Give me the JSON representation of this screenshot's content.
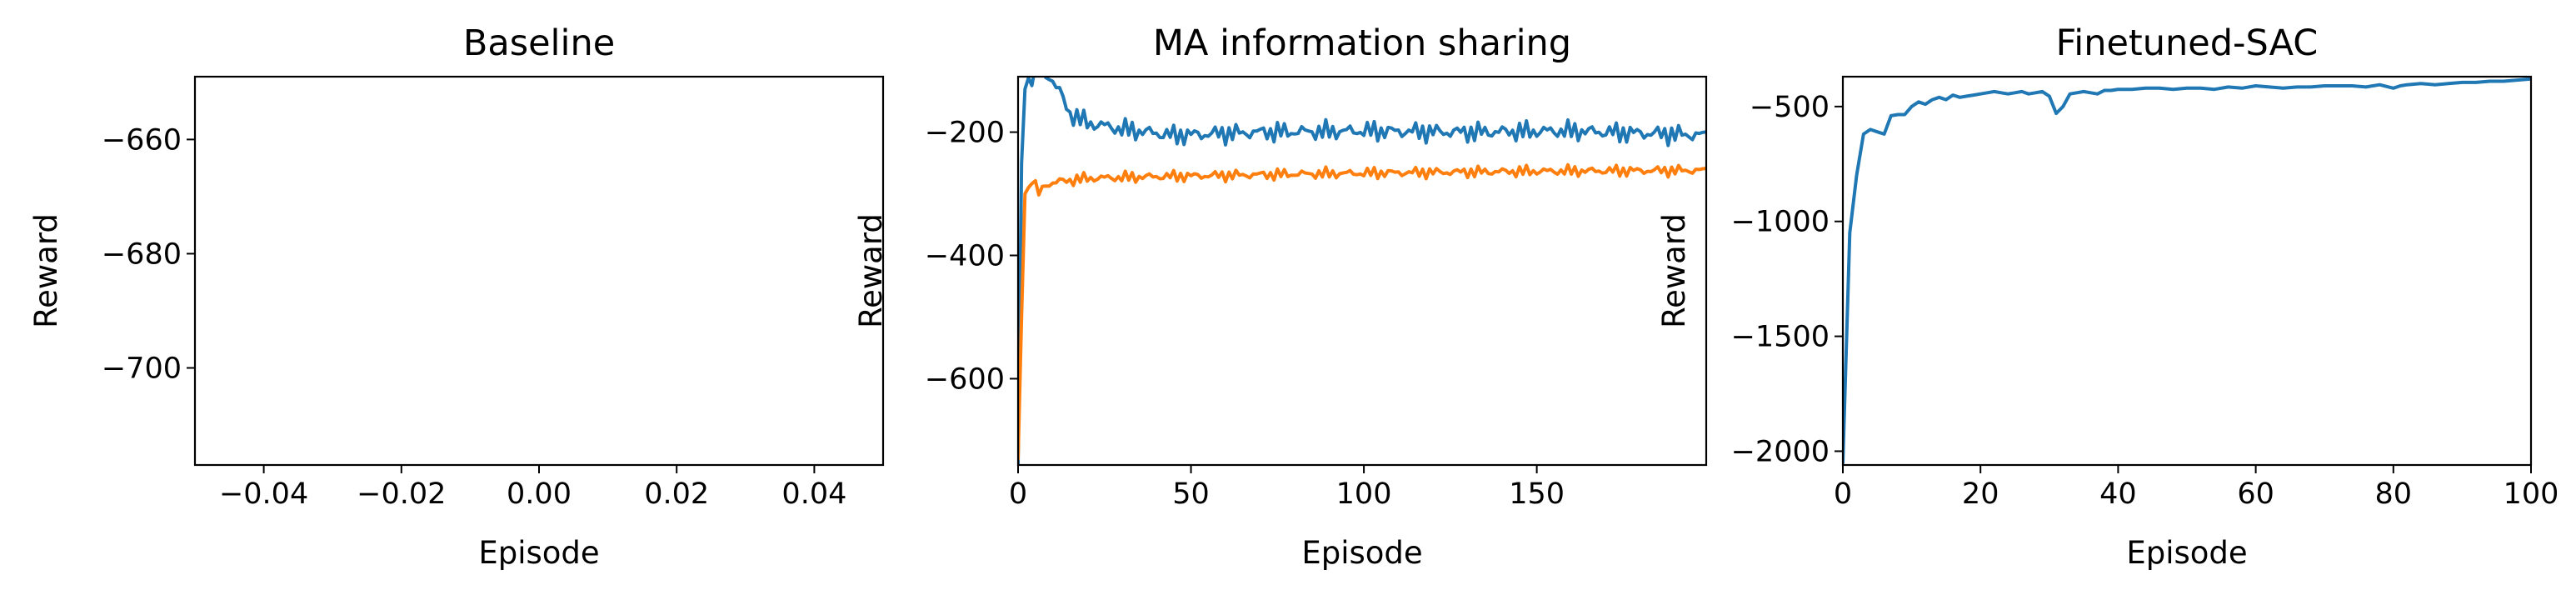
{
  "chart_data": [
    {
      "type": "line",
      "title": "Baseline",
      "xlabel": "Episode",
      "ylabel": "Reward",
      "xlim": [
        -0.05,
        0.05
      ],
      "ylim": [
        -717,
        -649
      ],
      "xticks": [
        -0.04,
        -0.02,
        0.0,
        0.02,
        0.04
      ],
      "xtick_labels": [
        "−0.04",
        "−0.02",
        "0.00",
        "0.02",
        "0.04"
      ],
      "yticks": [
        -660,
        -680,
        -700
      ],
      "ytick_labels": [
        "−660",
        "−680",
        "−700"
      ],
      "series": []
    },
    {
      "type": "line",
      "title": "MA information sharing",
      "xlabel": "Episode",
      "ylabel": "Reward",
      "xlim": [
        0,
        199
      ],
      "ylim": [
        -740,
        -110
      ],
      "xticks": [
        0,
        50,
        100,
        150
      ],
      "xtick_labels": [
        "0",
        "50",
        "100",
        "150"
      ],
      "yticks": [
        -200,
        -400,
        -600
      ],
      "ytick_labels": [
        "−200",
        "−400",
        "−600"
      ],
      "series": [
        {
          "color": "#1f77b4",
          "generator": "noisy",
          "start": -740,
          "ramp": [
            [
              1,
              -250
            ],
            [
              2,
              -130
            ],
            [
              3,
              -112
            ],
            [
              6,
              -105
            ],
            [
              9,
              -108
            ],
            [
              12,
              -135
            ],
            [
              15,
              -170
            ],
            [
              20,
              -185
            ],
            [
              30,
              -195
            ],
            [
              45,
              -205
            ],
            [
              70,
              -200
            ],
            [
              100,
              -198
            ],
            [
              130,
              -200
            ],
            [
              160,
              -198
            ],
            [
              199,
              -205
            ]
          ],
          "amp": 14
        },
        {
          "color": "#ff7f0e",
          "generator": "noisy",
          "start": -730,
          "ramp": [
            [
              1,
              -500
            ],
            [
              2,
              -300
            ],
            [
              3,
              -290
            ],
            [
              4,
              -275
            ],
            [
              6,
              -300
            ],
            [
              8,
              -285
            ],
            [
              12,
              -280
            ],
            [
              20,
              -275
            ],
            [
              40,
              -272
            ],
            [
              80,
              -268
            ],
            [
              120,
              -265
            ],
            [
              160,
              -263
            ],
            [
              199,
              -262
            ]
          ],
          "amp": 8
        }
      ]
    },
    {
      "type": "line",
      "title": "Finetuned-SAC",
      "xlabel": "Episode",
      "ylabel": "Reward",
      "xlim": [
        0,
        100
      ],
      "ylim": [
        -2060,
        -370
      ],
      "xticks": [
        0,
        20,
        40,
        60,
        80,
        100
      ],
      "xtick_labels": [
        "0",
        "20",
        "40",
        "60",
        "80",
        "100"
      ],
      "yticks": [
        -500,
        -1000,
        -1500,
        -2000
      ],
      "ytick_labels": [
        "−500",
        "−1000",
        "−1500",
        "−2000"
      ],
      "series": [
        {
          "color": "#1f77b4",
          "generator": "points",
          "points": [
            [
              0,
              -2050
            ],
            [
              1,
              -1050
            ],
            [
              2,
              -800
            ],
            [
              3,
              -620
            ],
            [
              4,
              -600
            ],
            [
              5,
              -610
            ],
            [
              6,
              -620
            ],
            [
              7,
              -540
            ],
            [
              8,
              -535
            ],
            [
              9,
              -535
            ],
            [
              10,
              -500
            ],
            [
              11,
              -480
            ],
            [
              12,
              -490
            ],
            [
              13,
              -470
            ],
            [
              14,
              -460
            ],
            [
              15,
              -470
            ],
            [
              16,
              -450
            ],
            [
              17,
              -460
            ],
            [
              18,
              -455
            ],
            [
              19,
              -450
            ],
            [
              20,
              -445
            ],
            [
              21,
              -440
            ],
            [
              22,
              -435
            ],
            [
              23,
              -440
            ],
            [
              24,
              -445
            ],
            [
              25,
              -440
            ],
            [
              26,
              -435
            ],
            [
              27,
              -445
            ],
            [
              28,
              -440
            ],
            [
              29,
              -435
            ],
            [
              30,
              -455
            ],
            [
              31,
              -530
            ],
            [
              32,
              -500
            ],
            [
              33,
              -445
            ],
            [
              34,
              -440
            ],
            [
              35,
              -435
            ],
            [
              36,
              -440
            ],
            [
              37,
              -445
            ],
            [
              38,
              -430
            ],
            [
              39,
              -430
            ],
            [
              40,
              -425
            ],
            [
              42,
              -425
            ],
            [
              44,
              -420
            ],
            [
              46,
              -420
            ],
            [
              48,
              -425
            ],
            [
              50,
              -420
            ],
            [
              52,
              -420
            ],
            [
              54,
              -425
            ],
            [
              56,
              -415
            ],
            [
              58,
              -420
            ],
            [
              60,
              -410
            ],
            [
              62,
              -415
            ],
            [
              64,
              -420
            ],
            [
              66,
              -415
            ],
            [
              68,
              -415
            ],
            [
              70,
              -410
            ],
            [
              72,
              -410
            ],
            [
              74,
              -410
            ],
            [
              76,
              -415
            ],
            [
              78,
              -405
            ],
            [
              80,
              -420
            ],
            [
              81,
              -410
            ],
            [
              82,
              -405
            ],
            [
              84,
              -400
            ],
            [
              86,
              -405
            ],
            [
              88,
              -400
            ],
            [
              90,
              -395
            ],
            [
              92,
              -395
            ],
            [
              94,
              -390
            ],
            [
              96,
              -390
            ],
            [
              98,
              -385
            ],
            [
              100,
              -380
            ]
          ]
        }
      ]
    }
  ]
}
